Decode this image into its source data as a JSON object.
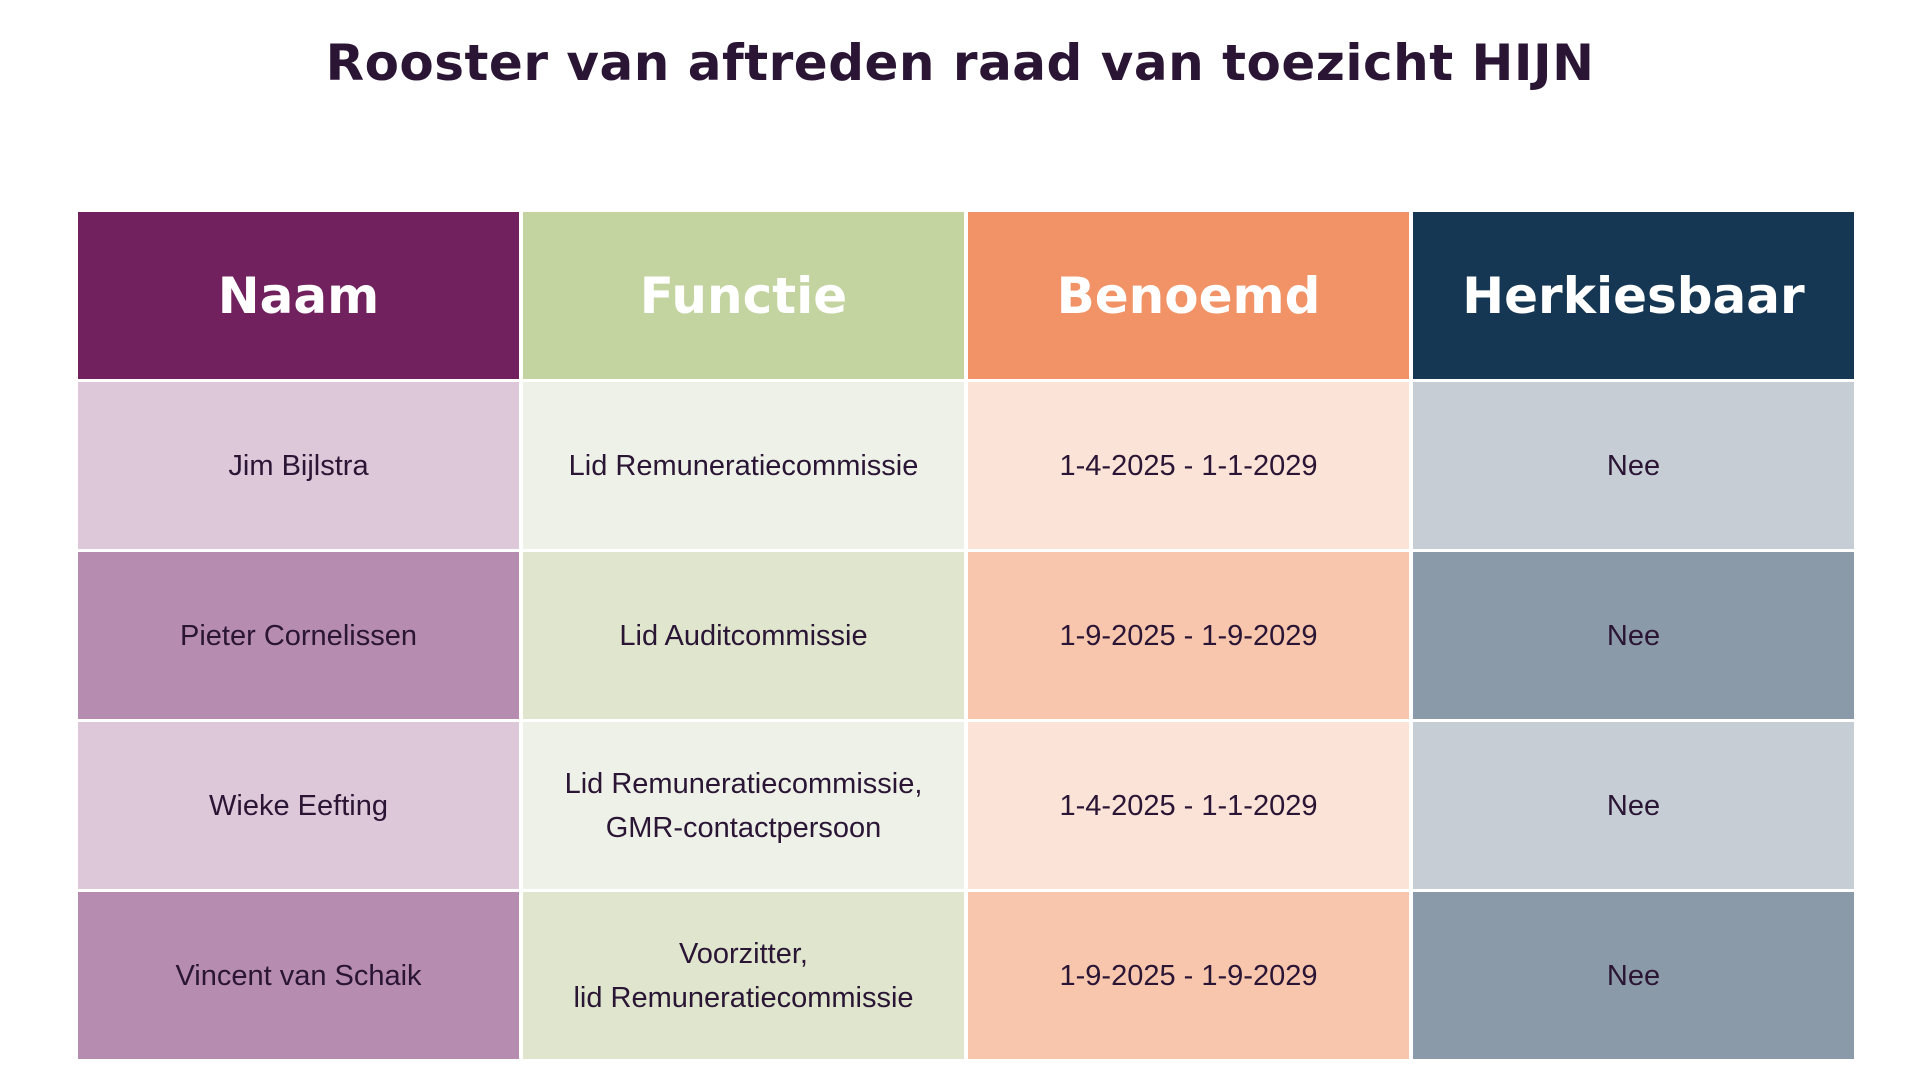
{
  "title": "Rooster van aftreden raad van toezicht HIJN",
  "colors": {
    "title_text": "#2a1535",
    "naam_header": "#72215f",
    "functie_header": "#c3d4a0",
    "benoemd_header": "#f19366",
    "herkiesbaar_header": "#163753"
  },
  "table": {
    "headers": [
      "Naam",
      "Functie",
      "Benoemd",
      "Herkiesbaar"
    ],
    "rows": [
      {
        "naam": "Jim Bijlstra",
        "functie": [
          "Lid Remuneratiecommissie"
        ],
        "benoemd": "1-4-2025 - 1-1-2029",
        "herkiesbaar": "Nee"
      },
      {
        "naam": "Pieter Cornelissen",
        "functie": [
          "Lid Auditcommissie"
        ],
        "benoemd": "1-9-2025 - 1-9-2029",
        "herkiesbaar": "Nee"
      },
      {
        "naam": "Wieke Eefting",
        "functie": [
          "Lid Remuneratiecommissie,",
          "GMR-contactpersoon"
        ],
        "benoemd": "1-4-2025 - 1-1-2029",
        "herkiesbaar": "Nee"
      },
      {
        "naam": "Vincent van Schaik",
        "functie": [
          "Voorzitter,",
          "lid Remuneratiecommissie"
        ],
        "benoemd": "1-9-2025 - 1-9-2029",
        "herkiesbaar": "Nee"
      }
    ]
  }
}
